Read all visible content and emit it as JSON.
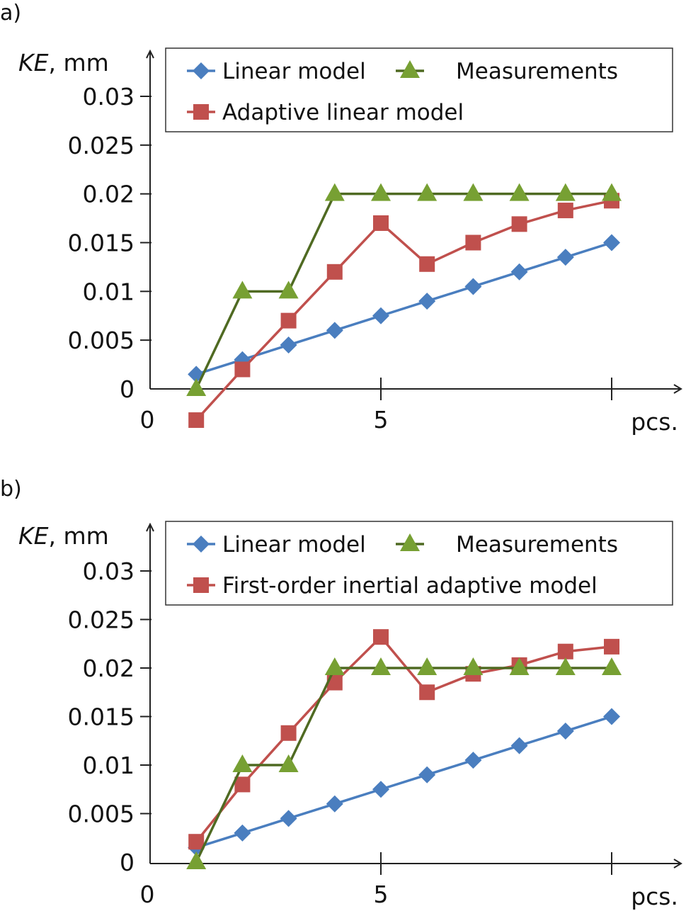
{
  "chart_data": [
    {
      "panel_label": "a)",
      "type": "line",
      "title": "",
      "ylabel_italic": "KE",
      "ylabel_unit": ", mm",
      "xlabel": "pcs.",
      "xlim": [
        0,
        10
      ],
      "ylim": [
        0,
        0.03
      ],
      "yticks": [
        0,
        0.005,
        0.01,
        0.015,
        0.02,
        0.025,
        0.03
      ],
      "ytick_labels": [
        "0",
        "0.005",
        "0.01",
        "0.015",
        "0.02",
        "0.025",
        "0.03"
      ],
      "xticks": [
        0,
        5,
        10
      ],
      "xtick_labels": [
        "0",
        "5",
        ""
      ],
      "grid": false,
      "legend_position": "top",
      "x": [
        1,
        2,
        3,
        4,
        5,
        6,
        7,
        8,
        9,
        10
      ],
      "series": [
        {
          "name": "Linear model",
          "marker": "diamond",
          "color": "#4a7ebf",
          "values": [
            0.0015,
            0.003,
            0.0045,
            0.006,
            0.0075,
            0.009,
            0.0105,
            0.012,
            0.0135,
            0.015
          ]
        },
        {
          "name": "Measurements",
          "marker": "triangle",
          "color": "#77a033",
          "line_color": "#4f6a22",
          "values": [
            0,
            0.01,
            0.01,
            0.02,
            0.02,
            0.02,
            0.02,
            0.02,
            0.02,
            0.02
          ]
        },
        {
          "name": "Adaptive linear model",
          "marker": "square",
          "color": "#c0504d",
          "values": [
            -0.0032,
            0.002,
            0.007,
            0.012,
            0.017,
            0.0128,
            0.015,
            0.0169,
            0.0183,
            0.0193
          ]
        }
      ]
    },
    {
      "panel_label": "b)",
      "type": "line",
      "title": "",
      "ylabel_italic": "KE",
      "ylabel_unit": ", mm",
      "xlabel": "pcs.",
      "xlim": [
        0,
        10
      ],
      "ylim": [
        0,
        0.03
      ],
      "yticks": [
        0,
        0.005,
        0.01,
        0.015,
        0.02,
        0.025,
        0.03
      ],
      "ytick_labels": [
        "0",
        "0.005",
        "0.01",
        "0.015",
        "0.02",
        "0.025",
        "0.03"
      ],
      "xticks": [
        0,
        5,
        10
      ],
      "xtick_labels": [
        "0",
        "5",
        ""
      ],
      "grid": false,
      "legend_position": "top",
      "x": [
        1,
        2,
        3,
        4,
        5,
        6,
        7,
        8,
        9,
        10
      ],
      "series": [
        {
          "name": "Linear model",
          "marker": "diamond",
          "color": "#4a7ebf",
          "values": [
            0.0015,
            0.003,
            0.0045,
            0.006,
            0.0075,
            0.009,
            0.0105,
            0.012,
            0.0135,
            0.015
          ]
        },
        {
          "name": "Measurements",
          "marker": "triangle",
          "color": "#77a033",
          "line_color": "#4f6a22",
          "values": [
            0,
            0.01,
            0.01,
            0.02,
            0.02,
            0.02,
            0.02,
            0.02,
            0.02,
            0.02
          ]
        },
        {
          "name": "First-order inertial adaptive model",
          "marker": "square",
          "color": "#c0504d",
          "values": [
            0.0021,
            0.008,
            0.0133,
            0.0185,
            0.0232,
            0.0175,
            0.0194,
            0.0203,
            0.0217,
            0.0222
          ]
        }
      ]
    }
  ]
}
